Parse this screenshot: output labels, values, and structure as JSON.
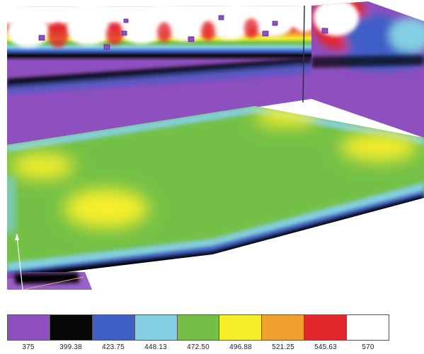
{
  "scale": {
    "colors": [
      "#8e4fbf",
      "#060606",
      "#3f5fc6",
      "#84cfe3",
      "#74c047",
      "#f6ef2a",
      "#f0a02c",
      "#e2282d",
      "#ffffff"
    ],
    "ticks": [
      "375",
      "399.38",
      "423.75",
      "448.13",
      "472.50",
      "496.88",
      "521.25",
      "545.63",
      "570"
    ]
  }
}
